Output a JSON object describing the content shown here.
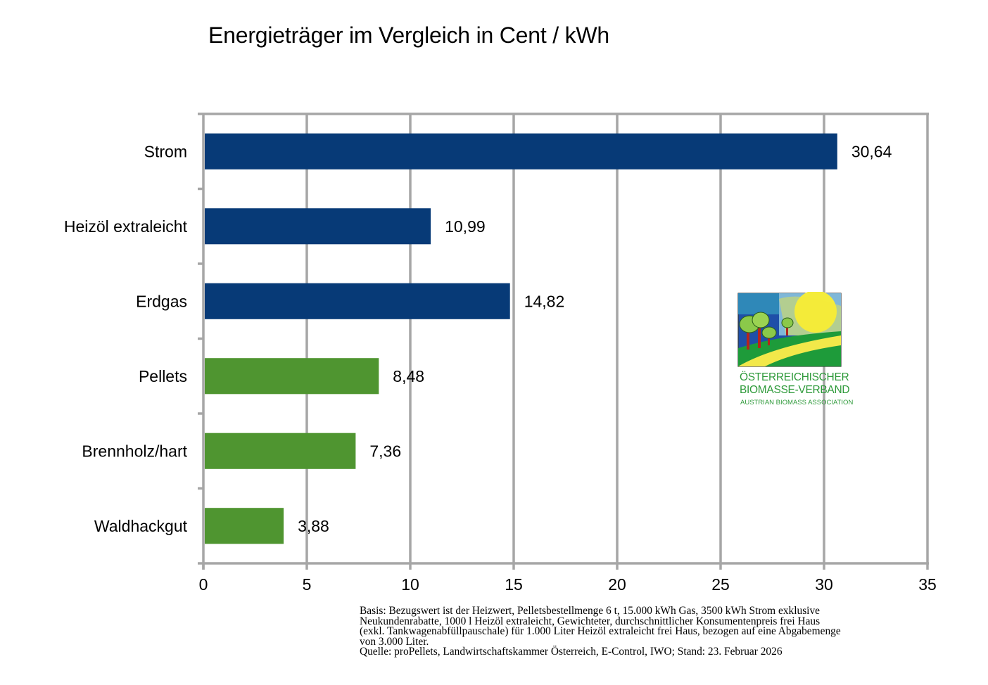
{
  "chart_data": {
    "type": "bar",
    "orientation": "horizontal",
    "title": "Energieträger im Vergleich in Cent / kWh",
    "xlabel": "",
    "ylabel": "",
    "categories": [
      "Strom",
      "Heizöl extraleicht",
      "Erdgas",
      "Pellets",
      "Brennholz/hart",
      "Waldhackgut"
    ],
    "values": [
      30.64,
      10.99,
      14.82,
      8.48,
      7.36,
      3.88
    ],
    "value_labels": [
      "30,64",
      "10,99",
      "14,82",
      "8,48",
      "7,36",
      "3,88"
    ],
    "bar_colors": [
      "#073a77",
      "#073a77",
      "#073a77",
      "#4f9530",
      "#4f9530",
      "#4f9530"
    ],
    "xlim": [
      0,
      35
    ],
    "x_ticks": [
      0,
      5,
      10,
      15,
      20,
      25,
      30,
      35
    ],
    "x_tick_labels": [
      "0",
      "5",
      "10",
      "15",
      "20",
      "25",
      "30",
      "35"
    ],
    "grid": true,
    "grid_color": "#a6a6a6",
    "legend": "none"
  },
  "logo": {
    "name": "logo-biomasse-verband",
    "line1": "ÖSTERREICHISCHER",
    "line2": "BIOMASSE-VERBAND",
    "line3": "AUSTRIAN BIOMASS ASSOCIATION"
  },
  "footnote": {
    "lines": [
      "Basis: Bezugswert ist der Heizwert, Pelletsbestellmenge 6 t, 15.000 kWh Gas, 3500 kWh Strom exklusive",
      "Neukundenrabatte, 1000 l Heizöl extraleicht, Gewichteter, durchschnittlicher Konsumentenpreis frei Haus",
      "(exkl. Tankwagenabfüllpauschale) für 1.000 Liter Heizöl extraleicht frei Haus, bezogen auf eine Abgabemenge",
      "von 3.000 Liter.",
      "Quelle: proPellets, Landwirtschaftskammer Österreich, E-Control, IWO; Stand: 23. Februar 2026"
    ]
  }
}
